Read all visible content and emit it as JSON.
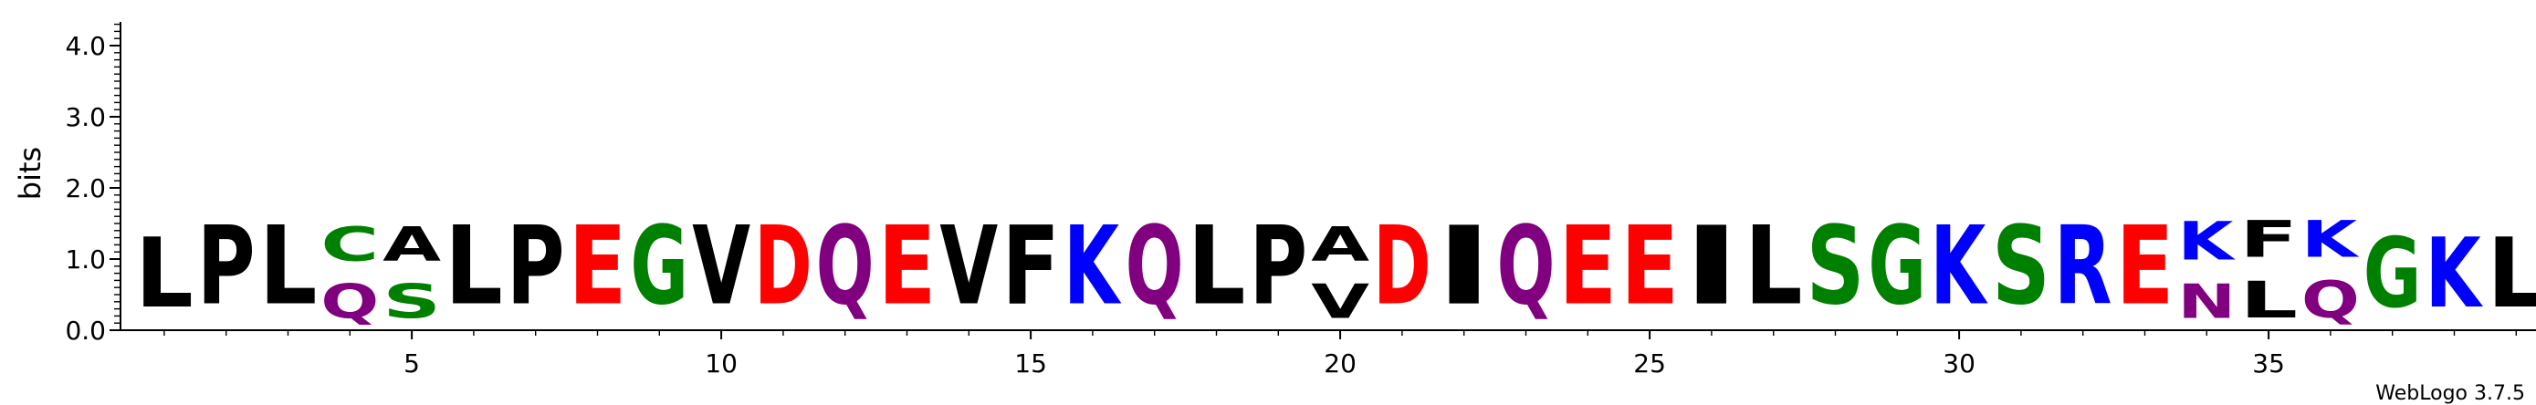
{
  "app": "WebLogo",
  "credit": "WebLogo 3.7.5",
  "chart_data": {
    "type": "sequence-logo",
    "ylabel": "bits",
    "ylim": [
      0,
      4.3
    ],
    "yticks": [
      "0.0",
      "1.0",
      "2.0",
      "3.0",
      "4.0"
    ],
    "xticks": [
      "5",
      "10",
      "15",
      "20",
      "25",
      "30",
      "35"
    ],
    "colors": {
      "K": "#0000ff",
      "R": "#0000ff",
      "D": "#ff0000",
      "E": "#ff0000",
      "Q": "#800080",
      "N": "#800080",
      "G": "#008000",
      "S": "#008000",
      "C": "#008000",
      "L": "#000000",
      "P": "#000000",
      "V": "#000000",
      "F": "#000000",
      "A": "#000000",
      "I": "#000000"
    },
    "positions": [
      {
        "pos": 1,
        "stack": [
          {
            "letter": "L",
            "bits": 1.6
          }
        ]
      },
      {
        "pos": 2,
        "stack": [
          {
            "letter": "P",
            "bits": 1.8
          }
        ]
      },
      {
        "pos": 3,
        "stack": [
          {
            "letter": "L",
            "bits": 1.8
          }
        ]
      },
      {
        "pos": 4,
        "stack": [
          {
            "letter": "Q",
            "bits": 0.8
          },
          {
            "letter": "C",
            "bits": 0.8
          }
        ]
      },
      {
        "pos": 5,
        "stack": [
          {
            "letter": "S",
            "bits": 0.8
          },
          {
            "letter": "A",
            "bits": 0.8
          }
        ]
      },
      {
        "pos": 6,
        "stack": [
          {
            "letter": "L",
            "bits": 1.8
          }
        ]
      },
      {
        "pos": 7,
        "stack": [
          {
            "letter": "P",
            "bits": 1.8
          }
        ]
      },
      {
        "pos": 8,
        "stack": [
          {
            "letter": "E",
            "bits": 1.8
          }
        ]
      },
      {
        "pos": 9,
        "stack": [
          {
            "letter": "G",
            "bits": 1.8
          }
        ]
      },
      {
        "pos": 10,
        "stack": [
          {
            "letter": "V",
            "bits": 1.8
          }
        ]
      },
      {
        "pos": 11,
        "stack": [
          {
            "letter": "D",
            "bits": 1.8
          }
        ]
      },
      {
        "pos": 12,
        "stack": [
          {
            "letter": "Q",
            "bits": 1.8
          }
        ]
      },
      {
        "pos": 13,
        "stack": [
          {
            "letter": "E",
            "bits": 1.8
          }
        ]
      },
      {
        "pos": 14,
        "stack": [
          {
            "letter": "V",
            "bits": 1.8
          }
        ]
      },
      {
        "pos": 15,
        "stack": [
          {
            "letter": "F",
            "bits": 1.8
          }
        ]
      },
      {
        "pos": 16,
        "stack": [
          {
            "letter": "K",
            "bits": 1.8
          }
        ]
      },
      {
        "pos": 17,
        "stack": [
          {
            "letter": "Q",
            "bits": 1.8
          }
        ]
      },
      {
        "pos": 18,
        "stack": [
          {
            "letter": "L",
            "bits": 1.8
          }
        ]
      },
      {
        "pos": 19,
        "stack": [
          {
            "letter": "P",
            "bits": 1.8
          }
        ]
      },
      {
        "pos": 20,
        "stack": [
          {
            "letter": "V",
            "bits": 0.8
          },
          {
            "letter": "A",
            "bits": 0.8
          }
        ]
      },
      {
        "pos": 21,
        "stack": [
          {
            "letter": "D",
            "bits": 1.8
          }
        ]
      },
      {
        "pos": 22,
        "stack": [
          {
            "letter": "I",
            "bits": 1.8
          }
        ]
      },
      {
        "pos": 23,
        "stack": [
          {
            "letter": "Q",
            "bits": 1.8
          }
        ]
      },
      {
        "pos": 24,
        "stack": [
          {
            "letter": "E",
            "bits": 1.8
          }
        ]
      },
      {
        "pos": 25,
        "stack": [
          {
            "letter": "E",
            "bits": 1.8
          }
        ]
      },
      {
        "pos": 26,
        "stack": [
          {
            "letter": "I",
            "bits": 1.8
          }
        ]
      },
      {
        "pos": 27,
        "stack": [
          {
            "letter": "L",
            "bits": 1.8
          }
        ]
      },
      {
        "pos": 28,
        "stack": [
          {
            "letter": "S",
            "bits": 1.8
          }
        ]
      },
      {
        "pos": 29,
        "stack": [
          {
            "letter": "G",
            "bits": 1.8
          }
        ]
      },
      {
        "pos": 30,
        "stack": [
          {
            "letter": "K",
            "bits": 1.8
          }
        ]
      },
      {
        "pos": 31,
        "stack": [
          {
            "letter": "S",
            "bits": 1.8
          }
        ]
      },
      {
        "pos": 32,
        "stack": [
          {
            "letter": "R",
            "bits": 1.8
          }
        ]
      },
      {
        "pos": 33,
        "stack": [
          {
            "letter": "E",
            "bits": 1.8
          }
        ]
      },
      {
        "pos": 34,
        "stack": [
          {
            "letter": "N",
            "bits": 0.8
          },
          {
            "letter": "K",
            "bits": 0.9
          }
        ]
      },
      {
        "pos": 35,
        "stack": [
          {
            "letter": "L",
            "bits": 0.85
          },
          {
            "letter": "F",
            "bits": 0.85
          }
        ]
      },
      {
        "pos": 36,
        "stack": [
          {
            "letter": "Q",
            "bits": 0.85
          },
          {
            "letter": "K",
            "bits": 0.85
          }
        ]
      },
      {
        "pos": 37,
        "stack": [
          {
            "letter": "G",
            "bits": 1.6
          }
        ]
      },
      {
        "pos": 38,
        "stack": [
          {
            "letter": "K",
            "bits": 1.6
          }
        ]
      },
      {
        "pos": 39,
        "stack": [
          {
            "letter": "L",
            "bits": 1.6
          }
        ]
      }
    ]
  }
}
